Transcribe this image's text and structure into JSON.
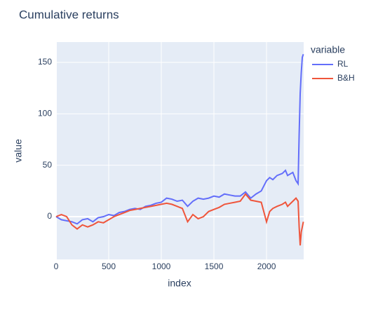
{
  "chart_data": {
    "type": "line",
    "title": "Cumulative returns",
    "x_label": "index",
    "y_label": "value",
    "legend_title": "variable",
    "legend": "right",
    "grid": true,
    "x": [
      0,
      50,
      100,
      150,
      200,
      250,
      300,
      350,
      400,
      450,
      500,
      550,
      600,
      650,
      700,
      750,
      800,
      850,
      900,
      950,
      1000,
      1050,
      1100,
      1150,
      1200,
      1250,
      1300,
      1350,
      1400,
      1450,
      1500,
      1550,
      1600,
      1650,
      1700,
      1750,
      1800,
      1850,
      1900,
      1950,
      2000,
      2030,
      2060,
      2100,
      2150,
      2180,
      2200,
      2250,
      2280,
      2300,
      2310,
      2320,
      2330,
      2340,
      2350
    ],
    "series": [
      {
        "name": "RL",
        "color": "#636efa",
        "values": [
          0,
          -3,
          -4,
          -5,
          -7,
          -3,
          -2,
          -5,
          -1,
          0,
          2,
          1,
          4,
          5,
          7,
          8,
          7,
          10,
          11,
          13,
          14,
          18,
          17,
          15,
          16,
          10,
          15,
          18,
          17,
          18,
          20,
          19,
          22,
          21,
          20,
          20,
          24,
          18,
          22,
          25,
          35,
          38,
          36,
          40,
          42,
          45,
          40,
          43,
          35,
          32,
          80,
          120,
          140,
          155,
          158
        ]
      },
      {
        "name": "B&H",
        "color": "#EF553B",
        "values": [
          0,
          2,
          0,
          -8,
          -12,
          -8,
          -10,
          -8,
          -5,
          -6,
          -3,
          0,
          2,
          4,
          6,
          7,
          8,
          9,
          10,
          11,
          12,
          13,
          12,
          10,
          8,
          -5,
          2,
          -2,
          0,
          5,
          7,
          9,
          12,
          13,
          14,
          15,
          22,
          16,
          15,
          14,
          -5,
          5,
          8,
          10,
          12,
          14,
          10,
          15,
          18,
          15,
          -10,
          -28,
          -15,
          -10,
          -5
        ]
      }
    ],
    "xlim": [
      0,
      2353
    ],
    "xticks": [
      0,
      500,
      1000,
      1500,
      2000
    ],
    "ylim": [
      -41.6,
      169.8
    ],
    "yticks": [
      0,
      50,
      100,
      150
    ]
  }
}
